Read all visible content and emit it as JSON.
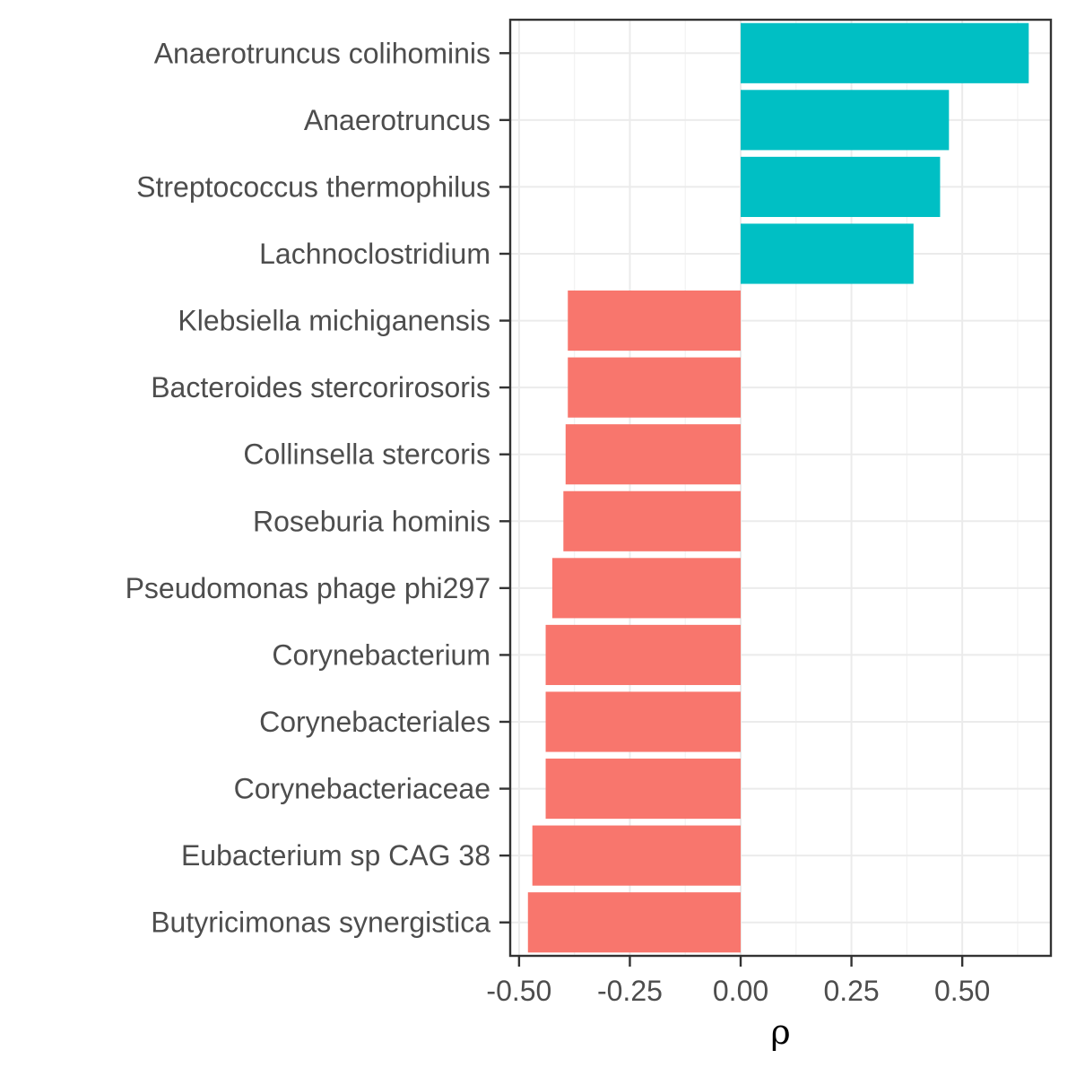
{
  "chart_data": {
    "type": "bar",
    "orientation": "horizontal",
    "xlabel": "ρ",
    "ylabel": "",
    "title": "",
    "xlim": [
      -0.52,
      0.7
    ],
    "x_ticks": [
      -0.5,
      -0.25,
      0,
      0.25,
      0.5
    ],
    "x_tick_labels": [
      "-0.50",
      "-0.25",
      "0.00",
      "0.25",
      "0.50"
    ],
    "grid": true,
    "legend": "none",
    "colors": {
      "positive": "#00BFC4",
      "negative": "#F8766D"
    },
    "categories": [
      "Anaerotruncus colihominis",
      "Anaerotruncus",
      "Streptococcus thermophilus",
      "Lachnoclostridium",
      "Klebsiella michiganensis",
      "Bacteroides stercorirosoris",
      "Collinsella stercoris",
      "Roseburia hominis",
      "Pseudomonas phage phi297",
      "Corynebacterium",
      "Corynebacteriales",
      "Corynebacteriaceae",
      "Eubacterium sp CAG 38",
      "Butyricimonas synergistica"
    ],
    "values": [
      0.65,
      0.47,
      0.45,
      0.39,
      -0.39,
      -0.39,
      -0.395,
      -0.4,
      -0.425,
      -0.44,
      -0.44,
      -0.44,
      -0.47,
      -0.48
    ]
  }
}
